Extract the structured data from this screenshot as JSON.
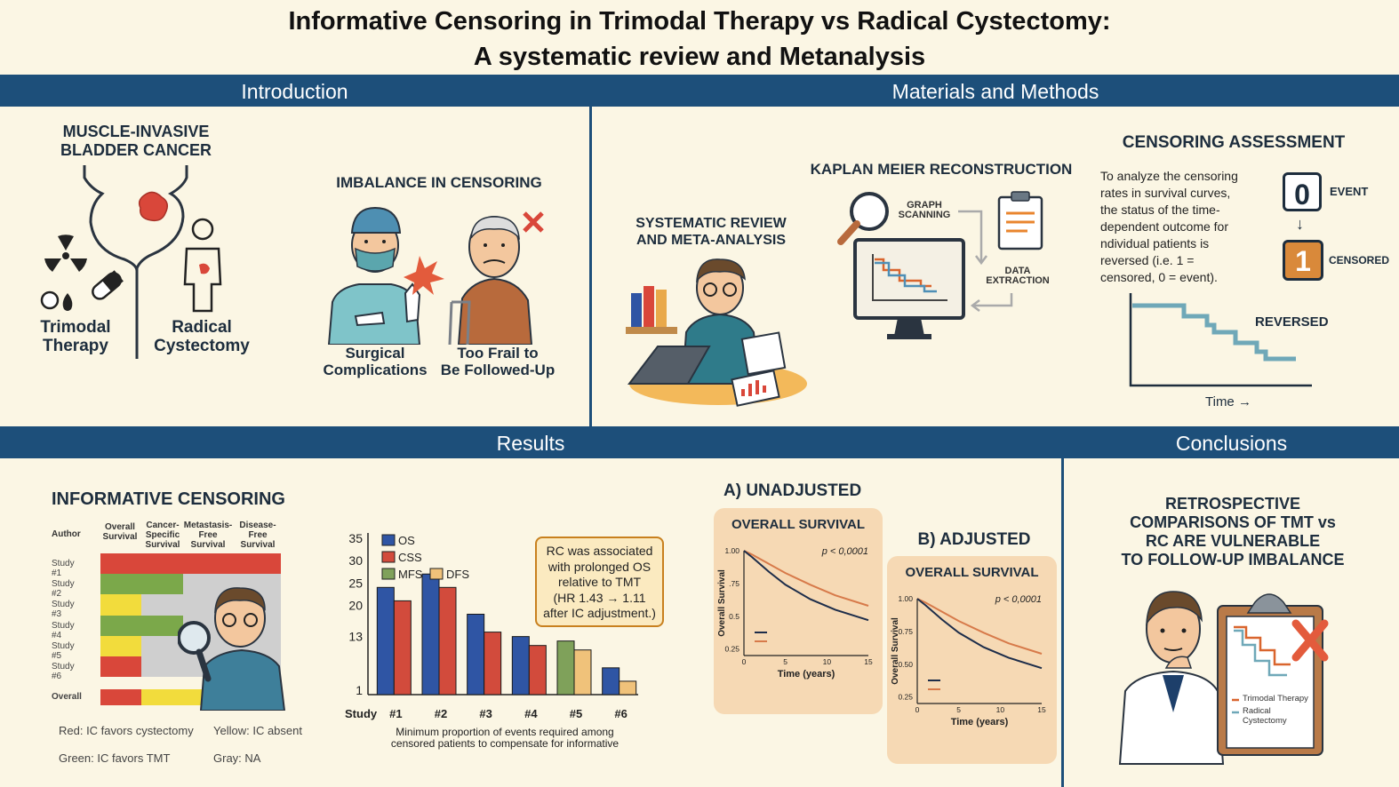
{
  "title": {
    "line1": "Informative Censoring in Trimodal Therapy vs Radical Cystectomy:",
    "line2": "A systematic review and Metanalysis"
  },
  "sections": {
    "introduction": "Introduction",
    "methods": "Materials and Methods",
    "results": "Results",
    "conclusions": "Conclusions"
  },
  "intro": {
    "heading": "MUSCLE-INVASIVE BLADDER CANCER",
    "heading_line1": "MUSCLE-INVASIVE",
    "heading_line2": "BLADDER CANCER",
    "tmt_line1": "Trimodal",
    "tmt_line2": "Therapy",
    "rc_line1": "Radical",
    "rc_line2": "Cystectomy",
    "imbalance_heading": "IMBALANCE IN CENSORING",
    "surgical_line1": "Surgical",
    "surgical_line2": "Complications",
    "frail_line1": "Too Frail to",
    "frail_line2": "Be Followed-Up"
  },
  "methods": {
    "sr_line1": "SYSTEMATIC REVIEW",
    "sr_line2": "AND META-ANALYSIS",
    "km_heading": "KAPLAN MEIER RECONSTRUCTION",
    "graph_line1": "GRAPH",
    "graph_line2": "SCANNING",
    "data_line1": "DATA",
    "data_line2": "EXTRACTION",
    "censoring_heading": "CENSORING ASSESSMENT",
    "censoring_text": [
      "To analyze the censoring",
      "rates in survival curves,",
      "the status of the time-",
      "dependent outcome for",
      "ndividual patients is",
      "reversed (i.e. 1 =",
      "censored, 0 = event)."
    ],
    "event_value": "0",
    "event_label": "EVENT",
    "censored_value": "1",
    "censored_label": "CENSORED",
    "reversed_label": "REVERSED",
    "time_label": "Time →"
  },
  "results": {
    "ic_heading": "INFORMATIVE CENSORING",
    "table_headers": [
      {
        "l1": "Author",
        "l2": "",
        "l3": ""
      },
      {
        "l1": "Overall",
        "l2": "Survival",
        "l3": ""
      },
      {
        "l1": "Cancer-",
        "l2": "Specific",
        "l3": "Survival"
      },
      {
        "l1": "Metastasis-",
        "l2": "Free",
        "l3": "Survival"
      },
      {
        "l1": "Disease-",
        "l2": "Free",
        "l3": "Survival"
      }
    ],
    "rows": [
      {
        "label": "Study #1",
        "cells": [
          "red",
          "red",
          "red",
          "red"
        ]
      },
      {
        "label": "Study #2",
        "cells": [
          "green",
          "green",
          "gray",
          "gray"
        ]
      },
      {
        "label": "Study #3",
        "cells": [
          "yellow",
          "gray",
          "gray",
          "gray"
        ]
      },
      {
        "label": "Study #4",
        "cells": [
          "green",
          "green",
          "gray",
          "gray"
        ]
      },
      {
        "label": "Study #5",
        "cells": [
          "yellow",
          "gray",
          "gray",
          "gray"
        ]
      },
      {
        "label": "Study #6",
        "cells": [
          "red",
          "gray",
          "gray",
          "gray"
        ]
      }
    ],
    "overall_label": "Overall",
    "overall_cells": [
      "red",
      "yellow",
      "yellow",
      "red"
    ],
    "legend": {
      "red": "Red: IC favors cystectomy",
      "yellow": "Yellow: IC absent",
      "green": "Green: IC favors TMT",
      "gray": "Gray: NA"
    },
    "cell_colors": {
      "red": "#d9473a",
      "green": "#7ba84a",
      "yellow": "#f2dc3c",
      "gray": "#cfcfcf"
    },
    "note_lines": [
      "RC was associated",
      "with prolonged OS",
      "relative to TMT",
      "(HR 1.43 → 1.11",
      "after IC adjustment.)"
    ],
    "chart_xlabel_line1": "Minimum proportion of events required among",
    "chart_xlabel_line2": "censored patients to compensate for informative",
    "km_a_title": "A) UNADJUSTED",
    "km_b_title": "B) ADJUSTED",
    "km_panel_title": "OVERALL SURVIVAL",
    "km_pvalue": "p < 0,0001",
    "km_ylabel": "Overall Survival",
    "km_xlabel": "Time (years)",
    "km_yticks": [
      "1.00",
      ".75",
      ".50",
      "0.25"
    ],
    "km_yticks_b": [
      "1.00",
      "0.75",
      "0.50",
      "0.25"
    ],
    "km_yticks_a": [
      "1.00",
      ".75",
      "0.5",
      "0.25"
    ],
    "km_xticks": [
      "0",
      "5",
      "10",
      "15"
    ]
  },
  "chart_data": {
    "type": "bar",
    "title": "",
    "xlabel": "Minimum proportion of events required among censored patients to compensate for informative",
    "ylabel": "",
    "x_title": "Study",
    "categories": [
      "#1",
      "#2",
      "#3",
      "#4",
      "#5",
      "#6"
    ],
    "yticks": [
      1,
      5,
      13,
      20,
      25,
      30,
      35
    ],
    "ytick_labels": [
      "1",
      "",
      "13",
      "20",
      "25",
      "30",
      "35"
    ],
    "ylim": [
      0,
      35
    ],
    "series": [
      {
        "name": "OS",
        "color": "#2f55a4",
        "values": [
          24,
          27,
          18,
          13,
          null,
          6
        ]
      },
      {
        "name": "CSS",
        "color": "#d24b3c",
        "values": [
          21,
          24,
          14,
          11,
          null,
          null
        ]
      },
      {
        "name": "MFS",
        "color": "#7fa15a",
        "values": [
          null,
          null,
          null,
          null,
          12,
          null
        ]
      },
      {
        "name": "DFS",
        "color": "#f0c27a",
        "values": [
          null,
          null,
          null,
          null,
          10,
          3
        ]
      }
    ],
    "legend_position": "top-left",
    "grid": false
  },
  "conclusions": {
    "lines": [
      "RETROSPECTIVE",
      "COMPARISONS OF TMT vs",
      "RC ARE VULNERABLE",
      "TO FOLLOW-UP IMBALANCE"
    ],
    "legend_tmt": "Trimodal Therapy",
    "legend_rc_line1": "Radical",
    "legend_rc_line2": "Cystectomy"
  }
}
